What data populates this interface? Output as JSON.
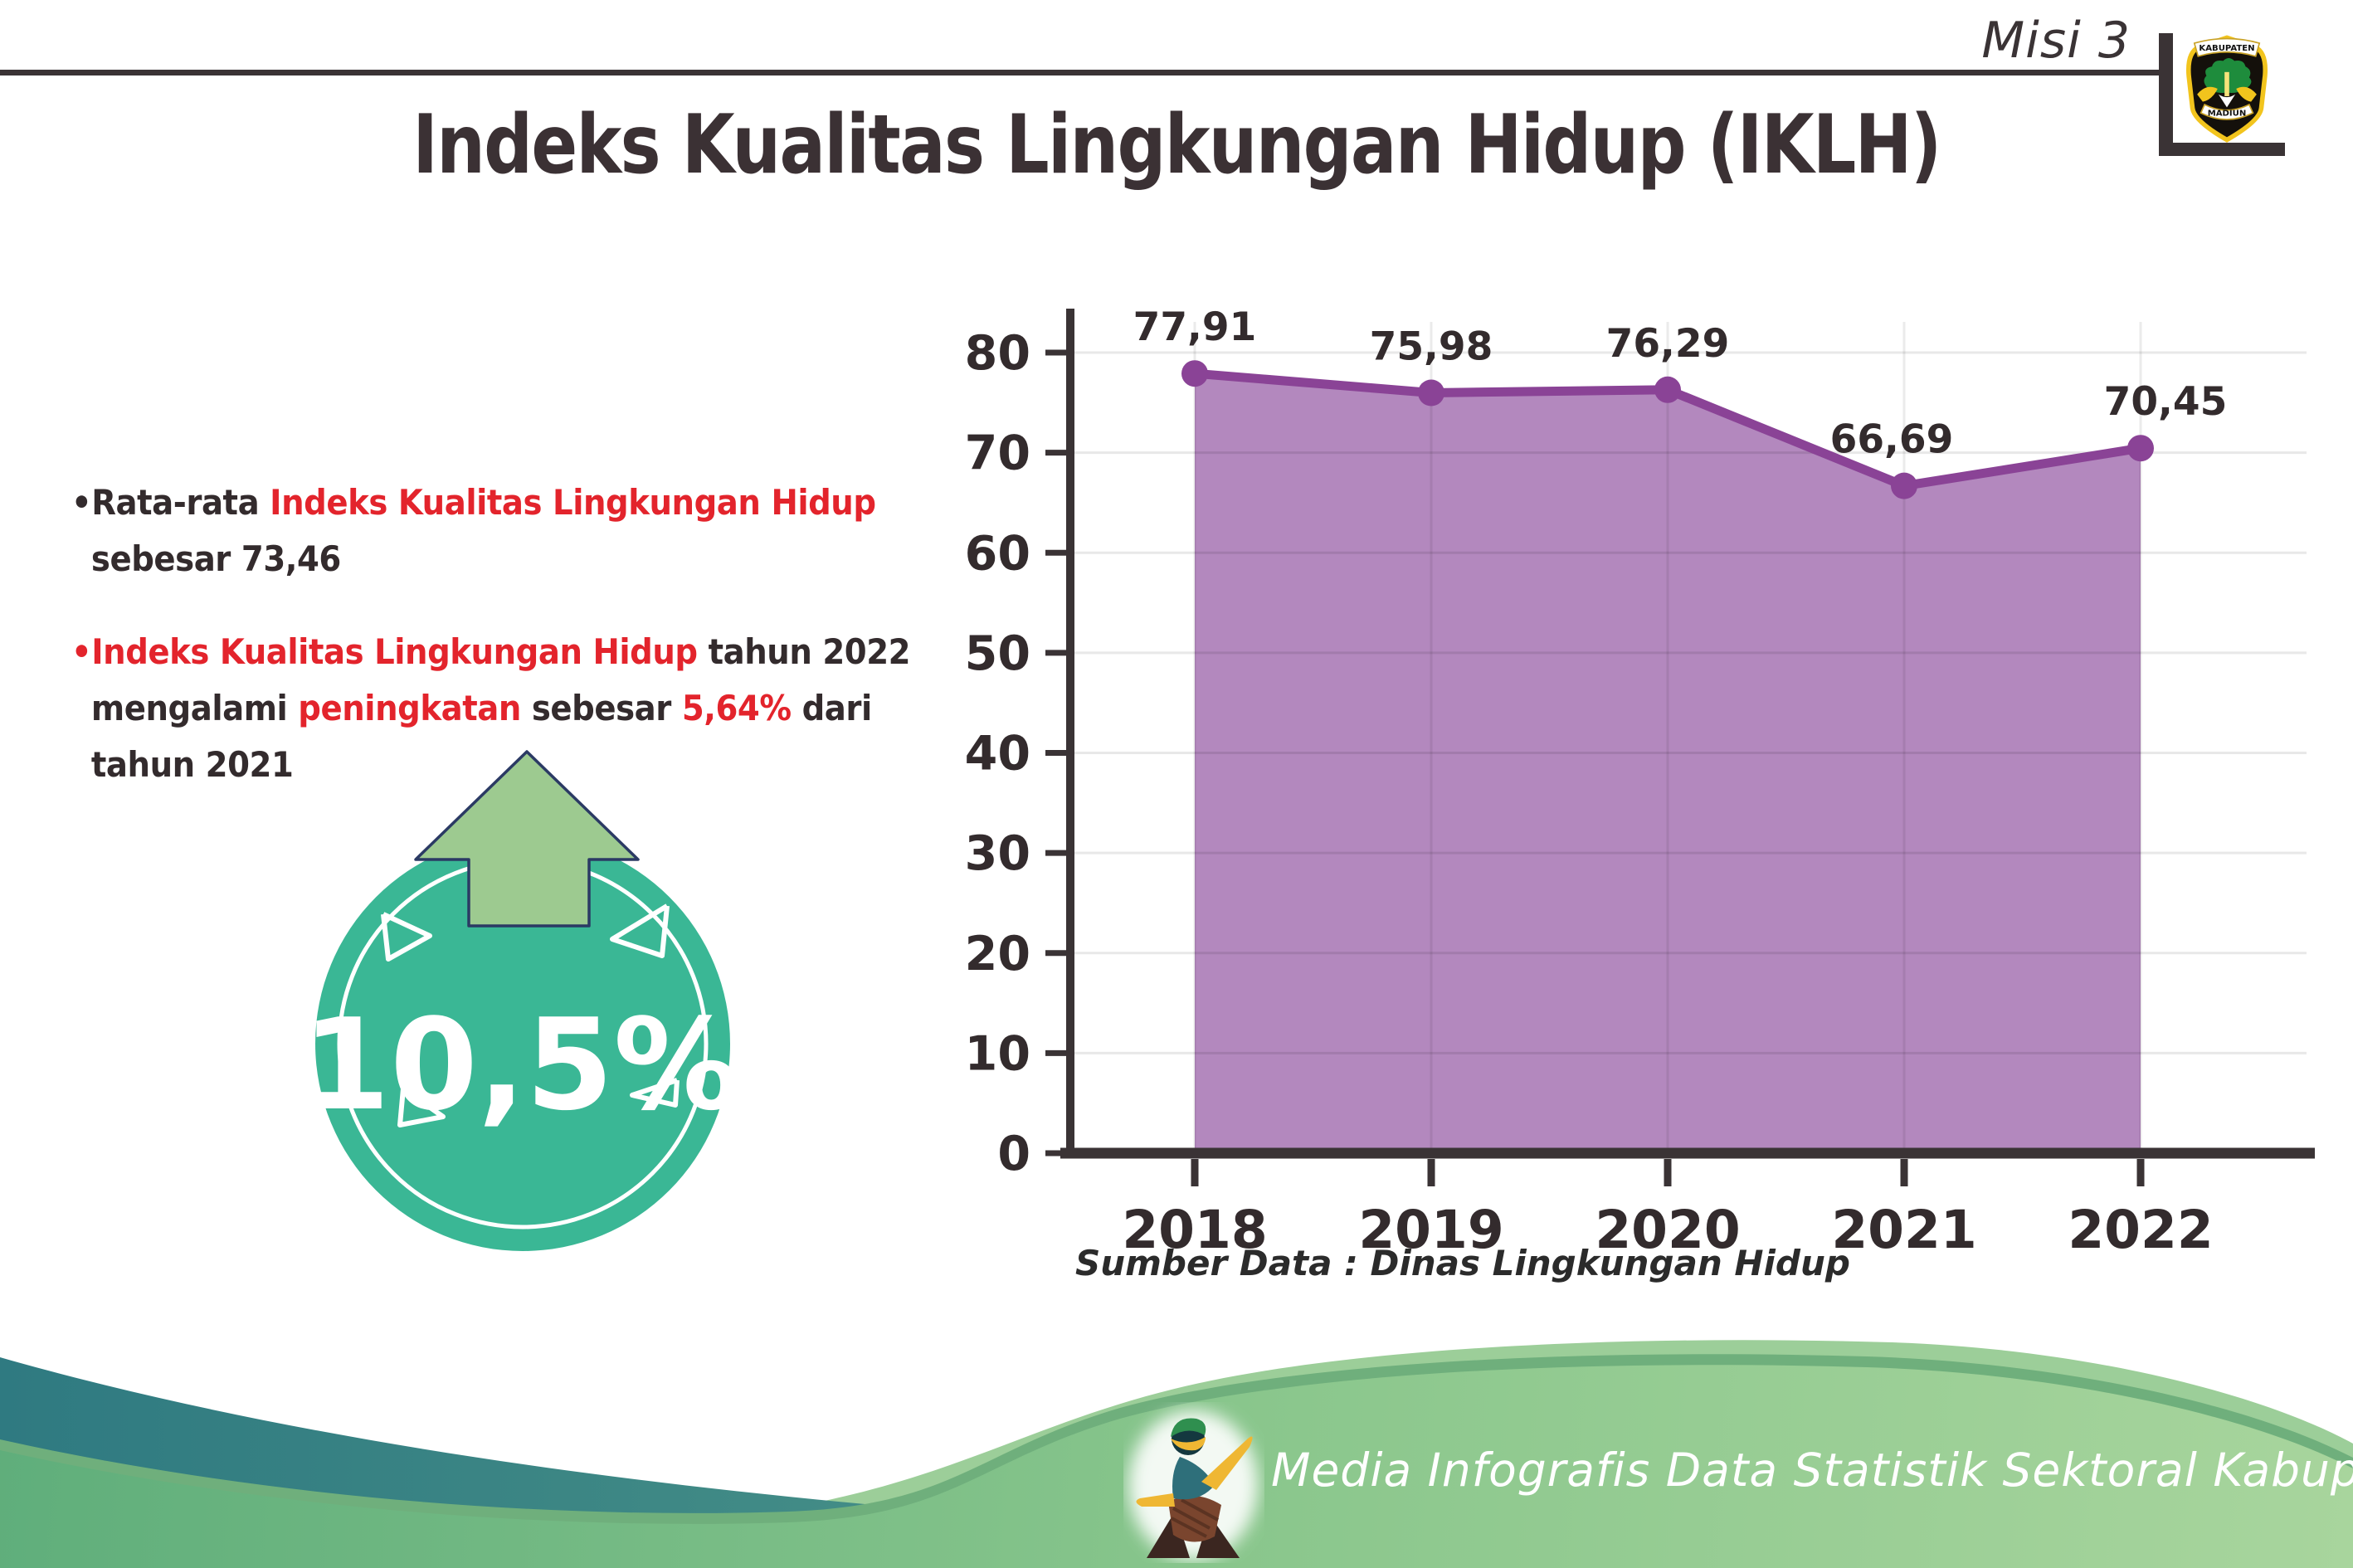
{
  "header": {
    "misi_label": "Misi 3",
    "logo": {
      "banner_top": "KABUPATEN",
      "banner_bottom": "MADIUN"
    }
  },
  "title": "Indeks Kualitas Lingkungan Hidup (IKLH)",
  "bullets": [
    {
      "lines": [
        [
          {
            "t": "•Rata-rata ",
            "c": "dark"
          },
          {
            "t": "Indeks Kualitas Lingkungan Hidup",
            "c": "red"
          }
        ],
        [
          {
            "t": "sebesar 73,46",
            "c": "dark"
          }
        ]
      ]
    },
    {
      "lines": [
        [
          {
            "t": "•Indeks Kualitas Lingkungan Hidup",
            "c": "red"
          },
          {
            "t": " tahun 2022",
            "c": "dark"
          }
        ],
        [
          {
            "t": "mengalami ",
            "c": "dark"
          },
          {
            "t": "peningkatan",
            "c": "red"
          },
          {
            "t": " sebesar ",
            "c": "dark"
          },
          {
            "t": "5,64%",
            "c": "red"
          },
          {
            "t": " dari",
            "c": "dark"
          }
        ],
        [
          {
            "t": "tahun 2021",
            "c": "dark"
          }
        ]
      ]
    }
  ],
  "badge": {
    "value": "10,5%",
    "circle_color": "#3AB795",
    "arrow_color": "#9DCA90"
  },
  "chart_data": {
    "type": "area",
    "categories": [
      "2018",
      "2019",
      "2020",
      "2021",
      "2022"
    ],
    "values": [
      77.91,
      75.98,
      76.29,
      66.69,
      70.45
    ],
    "value_labels": [
      "77,91",
      "75,98",
      "76,29",
      "66,69",
      "70,45"
    ],
    "yticks": [
      0,
      10,
      20,
      30,
      40,
      50,
      60,
      70,
      80
    ],
    "ylim": [
      0,
      84
    ],
    "grid": true,
    "legend": "none",
    "title": "",
    "xlabel": "",
    "ylabel": "",
    "fill_color": "#B388BE",
    "line_color": "#8A4396",
    "axis_color": "#3A3335",
    "label_color": "#332B2D"
  },
  "source_note": "Sumber Data : Dinas Lingkungan Hidup",
  "footer": {
    "text": "Media Infografis Data Statistik Sektoral Kabupaten Madiun |"
  },
  "colors": {
    "accent_red": "#E3242C",
    "text_dark": "#332B2D",
    "teal_badge": "#3AB795",
    "purple_fill": "#B388BE",
    "purple_line": "#8A4396",
    "footer_teal": "#2F7A81",
    "footer_green": "#7FC08A"
  }
}
